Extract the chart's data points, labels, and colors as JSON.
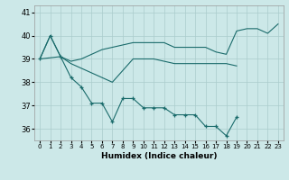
{
  "xlabel": "Humidex (Indice chaleur)",
  "bg_color": "#cce8e8",
  "grid_color": "#aacccc",
  "line_color": "#1a6b6b",
  "ylim": [
    35.5,
    41.3
  ],
  "xlim": [
    -0.5,
    23.5
  ],
  "series": [
    {
      "x": [
        0,
        1,
        2,
        3,
        4,
        5,
        6,
        7,
        8,
        9,
        10,
        11,
        12,
        13,
        14,
        15,
        16,
        17,
        18,
        19,
        20,
        21,
        22,
        23
      ],
      "y": [
        39.0,
        40.0,
        39.1,
        38.2,
        37.8,
        37.1,
        37.1,
        36.3,
        37.3,
        37.3,
        36.9,
        36.9,
        36.9,
        36.6,
        36.6,
        36.6,
        36.1,
        36.1,
        35.7,
        36.5,
        null,
        null,
        null,
        null
      ],
      "marker": true
    },
    {
      "x": [
        0,
        2,
        3,
        4,
        5,
        6,
        7,
        8,
        9,
        10,
        11,
        12,
        13,
        14,
        15,
        16,
        17,
        18,
        19,
        20,
        21,
        22,
        23
      ],
      "y": [
        39.0,
        39.1,
        38.8,
        38.6,
        38.4,
        38.2,
        38.0,
        38.5,
        39.0,
        39.0,
        39.0,
        38.9,
        38.8,
        38.8,
        38.8,
        38.8,
        38.8,
        38.8,
        38.7,
        null,
        null,
        null,
        null
      ],
      "marker": false
    },
    {
      "x": [
        0,
        1,
        2,
        3,
        4,
        5,
        6,
        7,
        8,
        9,
        10,
        11,
        12,
        13,
        14,
        15,
        16,
        17,
        18,
        19,
        20,
        21,
        22,
        23
      ],
      "y": [
        39.0,
        40.0,
        39.1,
        38.9,
        39.0,
        39.2,
        39.4,
        39.5,
        39.6,
        39.7,
        39.7,
        39.7,
        39.7,
        39.5,
        39.5,
        39.5,
        39.5,
        39.3,
        39.2,
        40.2,
        40.3,
        40.3,
        40.1,
        40.5
      ],
      "marker": false
    }
  ]
}
